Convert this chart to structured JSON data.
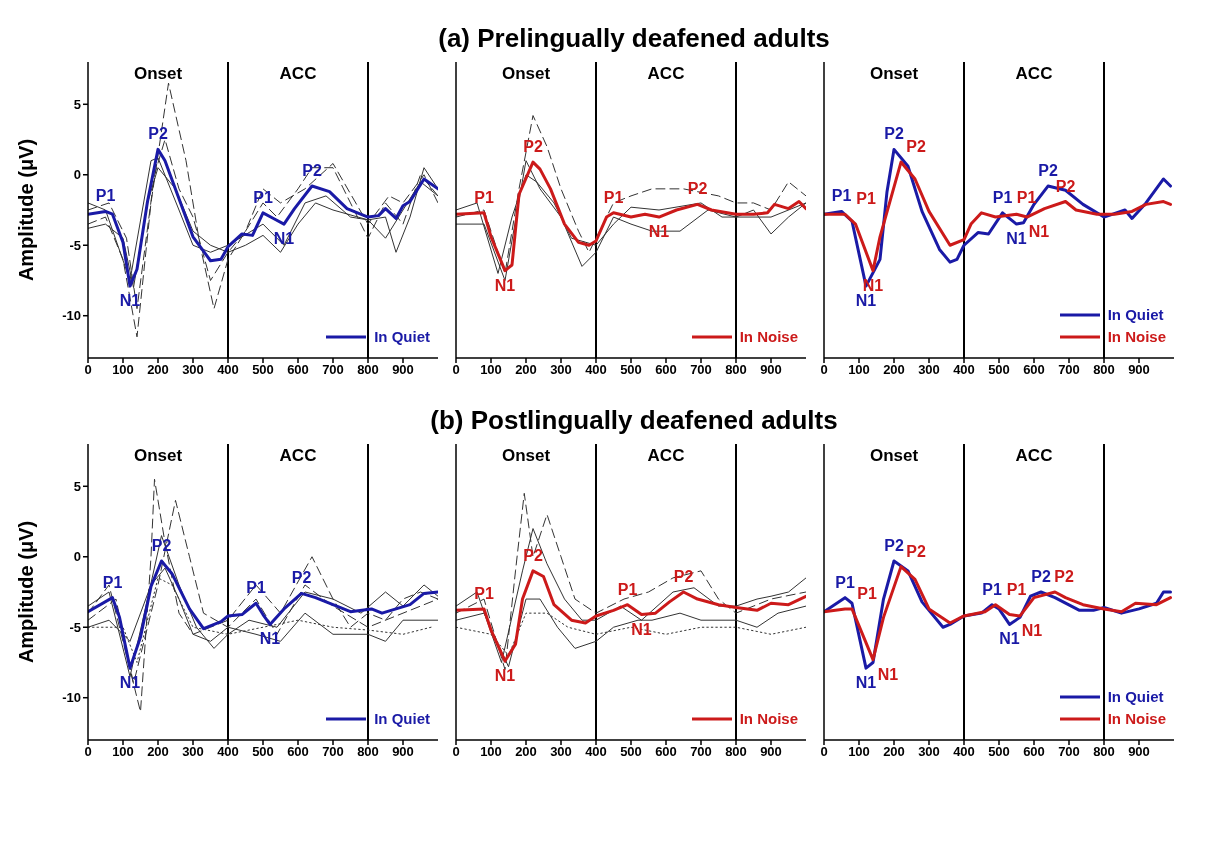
{
  "chart_data": [
    {
      "type": "line",
      "ylabel": "Amplitude (μV)",
      "xlim": [
        0,
        1000
      ],
      "xticks": [
        0,
        100,
        200,
        300,
        400,
        500,
        600,
        700,
        800,
        900
      ],
      "ylim": [
        -13,
        8
      ],
      "yticks": [
        -10,
        -5,
        0,
        5
      ],
      "legend": "bottom right",
      "ref_lines": [
        {
          "axis": "x",
          "value": 400,
          "color": "#000000"
        },
        {
          "axis": "x",
          "value": 800,
          "color": "#000000"
        }
      ],
      "annotations": [
        "Onset",
        "ACC",
        {
          "text": "P1",
          "x": 50,
          "y": -2.6
        },
        {
          "text": "N1",
          "x": 120,
          "y": -7.9
        },
        {
          "text": "P2",
          "x": 200,
          "y": 1.8
        },
        {
          "text": "P1",
          "x": 500,
          "y": -2.7
        },
        {
          "text": "N1",
          "x": 560,
          "y": -3.5
        },
        {
          "text": "P2",
          "x": 640,
          "y": -0.8
        }
      ],
      "series": [
        {
          "color": "#333333",
          "line_style": "dashed",
          "x": [
            0,
            50,
            100,
            140,
            180,
            230,
            280,
            320,
            360,
            400,
            450,
            500,
            540,
            600,
            640,
            700,
            750,
            800,
            850,
            900,
            950,
            1000
          ],
          "values": [
            -3.5,
            -3,
            -6,
            -11.5,
            -2,
            6.5,
            1,
            -5,
            -9.5,
            -6,
            -4,
            -2,
            -3,
            -1,
            0.5,
            0.5,
            -2,
            -4.5,
            -2,
            -3.5,
            0,
            -1.5
          ]
        },
        {
          "color": "#333333",
          "line_style": "solid",
          "x": [
            0,
            50,
            100,
            130,
            170,
            200,
            250,
            300,
            350,
            400,
            450,
            500,
            550,
            600,
            650,
            700,
            800,
            850,
            880,
            920,
            960,
            1000
          ],
          "values": [
            -3.8,
            -3.5,
            -4.5,
            -8,
            -2,
            0.5,
            -1,
            -4,
            -5,
            -5.5,
            -5,
            -4.3,
            -5.5,
            -3.5,
            -2,
            -2.5,
            -3.2,
            -3,
            -5.5,
            -3,
            0.5,
            -1
          ]
        },
        {
          "color": "#333333",
          "line_style": "dashed",
          "x": [
            0,
            60,
            110,
            140,
            190,
            220,
            260,
            300,
            350,
            400,
            450,
            500,
            550,
            620,
            700,
            800,
            860,
            900,
            960,
            1000
          ],
          "values": [
            -2.5,
            -2,
            -4.5,
            -9.5,
            0,
            2.5,
            -1,
            -3,
            -7.5,
            -5.5,
            -4,
            -1,
            -2,
            -1,
            0.8,
            -3.5,
            -1.5,
            -2,
            0,
            -2
          ]
        },
        {
          "color": "#333333",
          "line_style": "solid",
          "x": [
            0,
            50,
            120,
            180,
            200,
            260,
            300,
            350,
            400,
            500,
            560,
            620,
            680,
            750,
            800,
            850,
            900,
            950,
            1000
          ],
          "values": [
            -2,
            -2.5,
            -7.5,
            1,
            1.2,
            -2.5,
            -5,
            -5.5,
            -5,
            -3.5,
            -5,
            -2,
            -1.5,
            -3,
            -3.2,
            -4.5,
            -2.5,
            -0.5,
            -1.5
          ]
        },
        {
          "name": "In Quiet",
          "color": "#1a1aa6",
          "x": [
            0,
            50,
            70,
            100,
            120,
            140,
            170,
            200,
            220,
            260,
            300,
            350,
            380,
            400,
            440,
            470,
            500,
            530,
            560,
            590,
            640,
            690,
            740,
            800,
            830,
            850,
            880,
            900,
            920,
            960,
            1000
          ],
          "values": [
            -2.8,
            -2.6,
            -2.8,
            -4.8,
            -7.9,
            -6.7,
            -1.9,
            1.8,
            1,
            -1.7,
            -4.4,
            -6.1,
            -6,
            -5.1,
            -4.2,
            -4.3,
            -2.7,
            -3.1,
            -3.5,
            -2.4,
            -0.8,
            -1.2,
            -2.4,
            -3,
            -2.9,
            -2.4,
            -3.1,
            -2.2,
            -1.9,
            -0.3,
            -1
          ]
        }
      ]
    },
    {
      "type": "line",
      "title": "(a) Prelingually deafened adults",
      "xlim": [
        0,
        1000
      ],
      "xticks": [
        0,
        100,
        200,
        300,
        400,
        500,
        600,
        700,
        800,
        900
      ],
      "ylim": [
        -13,
        8
      ],
      "yticks": [
        -10,
        -5,
        0,
        5
      ],
      "tick_labels": "x",
      "legend": "bottom right",
      "ref_lines": [
        {
          "axis": "x",
          "value": 400,
          "color": "#000000"
        },
        {
          "axis": "x",
          "value": 800,
          "color": "#000000"
        }
      ],
      "annotations": [
        "Onset",
        "ACC",
        {
          "text": "P1",
          "x": 80,
          "y": -2.7
        },
        {
          "text": "N1",
          "x": 140,
          "y": -6.8
        },
        {
          "text": "P2",
          "x": 220,
          "y": 0.9
        },
        {
          "text": "P1",
          "x": 450,
          "y": -2.7
        },
        {
          "text": "N1",
          "x": 580,
          "y": -3
        },
        {
          "text": "P2",
          "x": 690,
          "y": -2.1
        }
      ],
      "series": [
        {
          "color": "#333333",
          "line_style": "dashed",
          "x": [
            0,
            80,
            140,
            180,
            220,
            260,
            300,
            350,
            380,
            400,
            450,
            500,
            560,
            650,
            750,
            800,
            850,
            900,
            950,
            1000
          ],
          "values": [
            -3,
            -2.5,
            -7,
            -1,
            4.2,
            2,
            -1,
            -4,
            -5.5,
            -4.5,
            -2,
            -1.5,
            -1,
            -1,
            -1.5,
            -2,
            -2,
            -2.5,
            -0.5,
            -1.5
          ]
        },
        {
          "color": "#333333",
          "line_style": "solid",
          "x": [
            0,
            80,
            140,
            200,
            240,
            300,
            360,
            400,
            450,
            500,
            560,
            640,
            720,
            800,
            850,
            900,
            950,
            1000
          ],
          "values": [
            -3.5,
            -3.5,
            -7.5,
            1,
            -1,
            -3,
            -6.5,
            -5.5,
            -3,
            -3.5,
            -4,
            -4,
            -2.5,
            -3,
            -2.5,
            -4.2,
            -3,
            -2
          ]
        },
        {
          "color": "#333333",
          "line_style": "solid",
          "x": [
            0,
            60,
            120,
            160,
            200,
            230,
            280,
            330,
            400,
            450,
            500,
            580,
            700,
            760,
            800,
            900,
            1000
          ],
          "values": [
            -2.5,
            -2,
            -7,
            -3,
            0,
            -0.5,
            -2,
            -4.5,
            -5,
            -3.5,
            -2.3,
            -2.5,
            -2,
            -3,
            -3,
            -3,
            -2
          ]
        },
        {
          "name": "In Noise",
          "color": "#cc1a1a",
          "x": [
            0,
            80,
            100,
            140,
            160,
            180,
            220,
            240,
            270,
            310,
            350,
            380,
            400,
            430,
            450,
            500,
            540,
            580,
            630,
            690,
            730,
            800,
            850,
            890,
            910,
            950,
            980,
            1000
          ],
          "values": [
            -2.8,
            -2.7,
            -4.4,
            -6.8,
            -6.4,
            -1.4,
            0.9,
            0.4,
            -1,
            -3.5,
            -4.8,
            -5,
            -4.7,
            -3,
            -2.7,
            -3,
            -2.8,
            -3,
            -2.5,
            -2.1,
            -2.5,
            -2.8,
            -2.8,
            -2.7,
            -2.1,
            -2.4,
            -1.9,
            -2.4
          ]
        }
      ]
    },
    {
      "type": "line",
      "xlim": [
        0,
        1000
      ],
      "xticks": [
        0,
        100,
        200,
        300,
        400,
        500,
        600,
        700,
        800,
        900
      ],
      "ylim": [
        -13,
        8
      ],
      "yticks": [
        -10,
        -5,
        0,
        5
      ],
      "tick_labels": "x",
      "legend": "bottom right",
      "ref_lines": [
        {
          "axis": "x",
          "value": 400,
          "color": "#000000"
        },
        {
          "axis": "x",
          "value": 800,
          "color": "#000000"
        }
      ],
      "annotations": [
        "Onset",
        "ACC",
        {
          "text": "P1",
          "x": 50,
          "y": -2.6
        },
        {
          "text": "P1",
          "x": 60,
          "y": -2.8
        },
        {
          "text": "N1",
          "x": 120,
          "y": -7.9
        },
        {
          "text": "N1",
          "x": 140,
          "y": -6.8
        },
        {
          "text": "P2",
          "x": 200,
          "y": 1.8
        },
        {
          "text": "P2",
          "x": 220,
          "y": 0.9
        },
        {
          "text": "P1",
          "x": 510,
          "y": -2.7
        },
        {
          "text": "P1",
          "x": 450,
          "y": -2.7
        },
        {
          "text": "N1",
          "x": 550,
          "y": -3.5
        },
        {
          "text": "N1",
          "x": 580,
          "y": -3
        },
        {
          "text": "P2",
          "x": 640,
          "y": -0.8
        },
        {
          "text": "P2",
          "x": 690,
          "y": -1.9
        }
      ],
      "series": [
        {
          "name": "In Quiet",
          "color": "#1a1aa6",
          "x": [
            0,
            50,
            80,
            120,
            160,
            180,
            200,
            240,
            280,
            330,
            360,
            380,
            400,
            440,
            470,
            510,
            550,
            570,
            600,
            640,
            690,
            740,
            800,
            860,
            880,
            920,
            970,
            990
          ],
          "values": [
            -2.8,
            -2.6,
            -3.3,
            -7.9,
            -6,
            -1.2,
            1.8,
            0.6,
            -2.6,
            -5.3,
            -6.2,
            -6,
            -5,
            -4.1,
            -4.2,
            -2.7,
            -3.5,
            -3.4,
            -2.1,
            -0.8,
            -1.1,
            -2.1,
            -3,
            -2.5,
            -3.1,
            -2,
            -0.3,
            -0.8
          ]
        },
        {
          "name": "In Noise",
          "color": "#cc1a1a",
          "x": [
            0,
            60,
            90,
            140,
            160,
            220,
            260,
            300,
            360,
            400,
            420,
            450,
            490,
            550,
            580,
            630,
            690,
            720,
            780,
            830,
            880,
            920,
            970,
            990
          ],
          "values": [
            -2.8,
            -2.8,
            -3.5,
            -6.8,
            -4.4,
            0.9,
            -0.3,
            -2.6,
            -5,
            -4.6,
            -3.5,
            -2.7,
            -3,
            -2.8,
            -3,
            -2.4,
            -1.9,
            -2.5,
            -2.8,
            -2.8,
            -2.6,
            -2.1,
            -1.9,
            -2.1
          ]
        }
      ]
    },
    {
      "type": "line",
      "ylabel": "Amplitude (μV)",
      "xlim": [
        0,
        1000
      ],
      "xticks": [
        0,
        100,
        200,
        300,
        400,
        500,
        600,
        700,
        800,
        900
      ],
      "ylim": [
        -13,
        8
      ],
      "yticks": [
        -10,
        -5,
        0,
        5
      ],
      "legend": "bottom right",
      "ref_lines": [
        {
          "axis": "x",
          "value": 400,
          "color": "#000000"
        },
        {
          "axis": "x",
          "value": 800,
          "color": "#000000"
        }
      ],
      "annotations": [
        "Onset",
        "ACC",
        {
          "text": "P1",
          "x": 70,
          "y": -2.9
        },
        {
          "text": "N1",
          "x": 120,
          "y": -7.9
        },
        {
          "text": "P2",
          "x": 210,
          "y": -0.3
        },
        {
          "text": "P1",
          "x": 480,
          "y": -3.3
        },
        {
          "text": "N1",
          "x": 520,
          "y": -4.8
        },
        {
          "text": "P2",
          "x": 610,
          "y": -2.6
        }
      ],
      "series": [
        {
          "color": "#333333",
          "line_style": "dashed",
          "x": [
            0,
            60,
            100,
            150,
            180,
            190,
            220,
            260,
            300,
            350,
            400,
            480,
            550,
            640,
            700,
            750,
            800,
            850,
            900,
            950,
            1000
          ],
          "values": [
            -4,
            -2,
            -6,
            -11,
            0,
            5.5,
            1,
            -4,
            -5.5,
            -5,
            -4.5,
            -2,
            -4,
            0,
            -3,
            -5,
            -4,
            -4.5,
            -3,
            -2.5,
            -3
          ]
        },
        {
          "color": "#333333",
          "line_style": "dashed",
          "x": [
            0,
            80,
            130,
            200,
            250,
            290,
            330,
            400,
            480,
            540,
            620,
            700,
            800,
            900,
            1000
          ],
          "values": [
            -4.5,
            -3,
            -9,
            -2,
            4,
            0,
            -4,
            -5,
            -3,
            -5.5,
            -2,
            -3.5,
            -5,
            -4,
            -3
          ]
        },
        {
          "color": "#333333",
          "line_style": "solid",
          "x": [
            0,
            60,
            120,
            170,
            210,
            260,
            310,
            360,
            400,
            460,
            540,
            620,
            700,
            780,
            850,
            900,
            960,
            1000
          ],
          "values": [
            -3.5,
            -2.5,
            -8.5,
            -3,
            1.5,
            -2,
            -5,
            -6.5,
            -5.5,
            -4.5,
            -5,
            -2.5,
            -3,
            -4,
            -2.5,
            -3.5,
            -2,
            -2.8
          ]
        },
        {
          "color": "#333333",
          "line_style": "solid",
          "x": [
            0,
            60,
            120,
            180,
            220,
            260,
            300,
            350,
            400,
            480,
            550,
            620,
            700,
            800,
            850,
            900,
            1000
          ],
          "values": [
            -5,
            -4.5,
            -6,
            -2,
            -0.8,
            -3,
            -5.5,
            -6,
            -5,
            -5.5,
            -6,
            -4,
            -5.5,
            -5.5,
            -6,
            -4.5,
            -4.5
          ]
        },
        {
          "color": "#333333",
          "line_style": "dotted",
          "x": [
            0,
            100,
            140,
            200,
            240,
            300,
            400,
            500,
            600,
            700,
            800,
            900,
            980
          ],
          "values": [
            -5,
            -5,
            -7.5,
            -1.5,
            -2,
            -5,
            -5.5,
            -5,
            -4.5,
            -5,
            -5.2,
            -5.5,
            -5
          ]
        },
        {
          "name": "In Quiet",
          "color": "#1a1aa6",
          "x": [
            0,
            70,
            90,
            120,
            150,
            180,
            210,
            240,
            290,
            330,
            380,
            400,
            440,
            480,
            500,
            520,
            560,
            610,
            650,
            700,
            750,
            810,
            840,
            880,
            920,
            960,
            1000
          ],
          "values": [
            -3.9,
            -2.9,
            -4.3,
            -7.9,
            -5.7,
            -2.1,
            -0.3,
            -1.2,
            -3.7,
            -5.1,
            -4.6,
            -4.2,
            -4.1,
            -3.3,
            -4.1,
            -4.8,
            -3.7,
            -2.6,
            -2.9,
            -3.4,
            -3.9,
            -3.7,
            -4,
            -3.7,
            -3.4,
            -2.6,
            -2.5
          ]
        }
      ]
    },
    {
      "type": "line",
      "title": "(b) Postlingually deafened adults",
      "xlim": [
        0,
        1000
      ],
      "xticks": [
        0,
        100,
        200,
        300,
        400,
        500,
        600,
        700,
        800,
        900
      ],
      "ylim": [
        -13,
        8
      ],
      "yticks": [
        -10,
        -5,
        0,
        5
      ],
      "tick_labels": "x",
      "legend": "bottom right",
      "ref_lines": [
        {
          "axis": "x",
          "value": 400,
          "color": "#000000"
        },
        {
          "axis": "x",
          "value": 800,
          "color": "#000000"
        }
      ],
      "annotations": [
        "Onset",
        "ACC",
        {
          "text": "P1",
          "x": 80,
          "y": -3.7
        },
        {
          "text": "N1",
          "x": 140,
          "y": -7.4
        },
        {
          "text": "P2",
          "x": 220,
          "y": -1
        },
        {
          "text": "P1",
          "x": 490,
          "y": -3.4
        },
        {
          "text": "N1",
          "x": 530,
          "y": -4.1
        },
        {
          "text": "P2",
          "x": 650,
          "y": -2.5
        }
      ],
      "series": [
        {
          "color": "#333333",
          "line_style": "dashed",
          "x": [
            0,
            80,
            140,
            170,
            195,
            220,
            260,
            300,
            340,
            400,
            480,
            550,
            620,
            700,
            750,
            800,
            900,
            1000
          ],
          "values": [
            -4,
            -3,
            -8,
            -1,
            4.5,
            0,
            3,
            0,
            -3,
            -4,
            -3,
            -2.5,
            -1.5,
            -1,
            -3,
            -4,
            -3,
            -2.5
          ]
        },
        {
          "color": "#333333",
          "line_style": "solid",
          "x": [
            0,
            60,
            130,
            190,
            220,
            260,
            310,
            360,
            400,
            470,
            530,
            620,
            680,
            750,
            800,
            860,
            900,
            950,
            1000
          ],
          "values": [
            -3.5,
            -2.5,
            -7.5,
            -1,
            2,
            -0.5,
            -3,
            -4.5,
            -4.5,
            -3.5,
            -4.5,
            -2.5,
            -2.2,
            -3.5,
            -3.5,
            -3,
            -2.8,
            -2.5,
            -1.5
          ]
        },
        {
          "color": "#333333",
          "line_style": "solid",
          "x": [
            0,
            80,
            150,
            200,
            240,
            290,
            340,
            400,
            450,
            520,
            560,
            640,
            700,
            800,
            860,
            920,
            1000
          ],
          "values": [
            -4.5,
            -4,
            -7.8,
            -3,
            -3,
            -5,
            -6.5,
            -6,
            -5,
            -4.5,
            -4.5,
            -4,
            -4.5,
            -4.5,
            -5,
            -4,
            -3.5
          ]
        },
        {
          "color": "#333333",
          "line_style": "dotted",
          "x": [
            0,
            100,
            150,
            200,
            260,
            320,
            400,
            500,
            600,
            700,
            800,
            900,
            1000
          ],
          "values": [
            -5,
            -5.5,
            -7,
            -4,
            -4,
            -5,
            -5.5,
            -5,
            -5.5,
            -5,
            -5,
            -5.5,
            -5
          ]
        },
        {
          "name": "In Noise",
          "color": "#cc1a1a",
          "x": [
            0,
            80,
            100,
            140,
            170,
            190,
            220,
            250,
            280,
            330,
            370,
            400,
            450,
            490,
            530,
            570,
            610,
            650,
            690,
            750,
            800,
            860,
            900,
            950,
            1000
          ],
          "values": [
            -3.8,
            -3.7,
            -5.2,
            -7.4,
            -6.2,
            -3,
            -1,
            -1.4,
            -3.4,
            -4.5,
            -4.7,
            -4.2,
            -3.8,
            -3.4,
            -4.1,
            -4,
            -3.2,
            -2.5,
            -3,
            -3.4,
            -3.6,
            -3.8,
            -3.3,
            -3.4,
            -2.8
          ]
        }
      ]
    },
    {
      "type": "line",
      "xlim": [
        0,
        1000
      ],
      "xticks": [
        0,
        100,
        200,
        300,
        400,
        500,
        600,
        700,
        800,
        900
      ],
      "ylim": [
        -13,
        8
      ],
      "yticks": [
        -10,
        -5,
        0,
        5
      ],
      "tick_labels": "x",
      "legend": "bottom right",
      "ref_lines": [
        {
          "axis": "x",
          "value": 400,
          "color": "#000000"
        },
        {
          "axis": "x",
          "value": 800,
          "color": "#000000"
        }
      ],
      "annotations": [
        "Onset",
        "ACC",
        {
          "text": "P1",
          "x": 60,
          "y": -2.9
        },
        {
          "text": "P1",
          "x": 80,
          "y": -3.7
        },
        {
          "text": "N1",
          "x": 120,
          "y": -7.9
        },
        {
          "text": "N1",
          "x": 140,
          "y": -7.3
        },
        {
          "text": "P2",
          "x": 200,
          "y": -0.3
        },
        {
          "text": "P2",
          "x": 220,
          "y": -0.7
        },
        {
          "text": "P1",
          "x": 480,
          "y": -3.4
        },
        {
          "text": "P1",
          "x": 490,
          "y": -3.4
        },
        {
          "text": "N1",
          "x": 530,
          "y": -4.8
        },
        {
          "text": "N1",
          "x": 560,
          "y": -4.2
        },
        {
          "text": "P2",
          "x": 620,
          "y": -2.5
        },
        {
          "text": "P2",
          "x": 660,
          "y": -2.5
        }
      ],
      "series": [
        {
          "name": "In Quiet",
          "color": "#1a1aa6",
          "x": [
            0,
            60,
            80,
            120,
            140,
            170,
            200,
            240,
            280,
            340,
            360,
            400,
            450,
            480,
            500,
            530,
            560,
            590,
            620,
            660,
            730,
            770,
            800,
            850,
            900,
            950,
            970,
            990
          ],
          "values": [
            -3.9,
            -2.9,
            -3.3,
            -7.9,
            -7.5,
            -3,
            -0.3,
            -1,
            -3.2,
            -5,
            -4.8,
            -4.2,
            -4,
            -3.4,
            -3.7,
            -4.8,
            -4.3,
            -2.8,
            -2.5,
            -2.9,
            -3.8,
            -3.8,
            -3.6,
            -4,
            -3.7,
            -3.3,
            -2.5,
            -2.5
          ]
        },
        {
          "name": "In Noise",
          "color": "#cc1a1a",
          "x": [
            0,
            60,
            80,
            140,
            170,
            220,
            260,
            300,
            360,
            400,
            460,
            490,
            530,
            560,
            600,
            660,
            690,
            740,
            800,
            850,
            890,
            950,
            990
          ],
          "values": [
            -3.9,
            -3.7,
            -3.7,
            -7.3,
            -4.3,
            -0.7,
            -1.6,
            -3.7,
            -4.7,
            -4.2,
            -3.9,
            -3.4,
            -4.1,
            -4.2,
            -2.9,
            -2.5,
            -2.9,
            -3.4,
            -3.7,
            -3.9,
            -3.3,
            -3.4,
            -2.9
          ]
        }
      ]
    }
  ]
}
